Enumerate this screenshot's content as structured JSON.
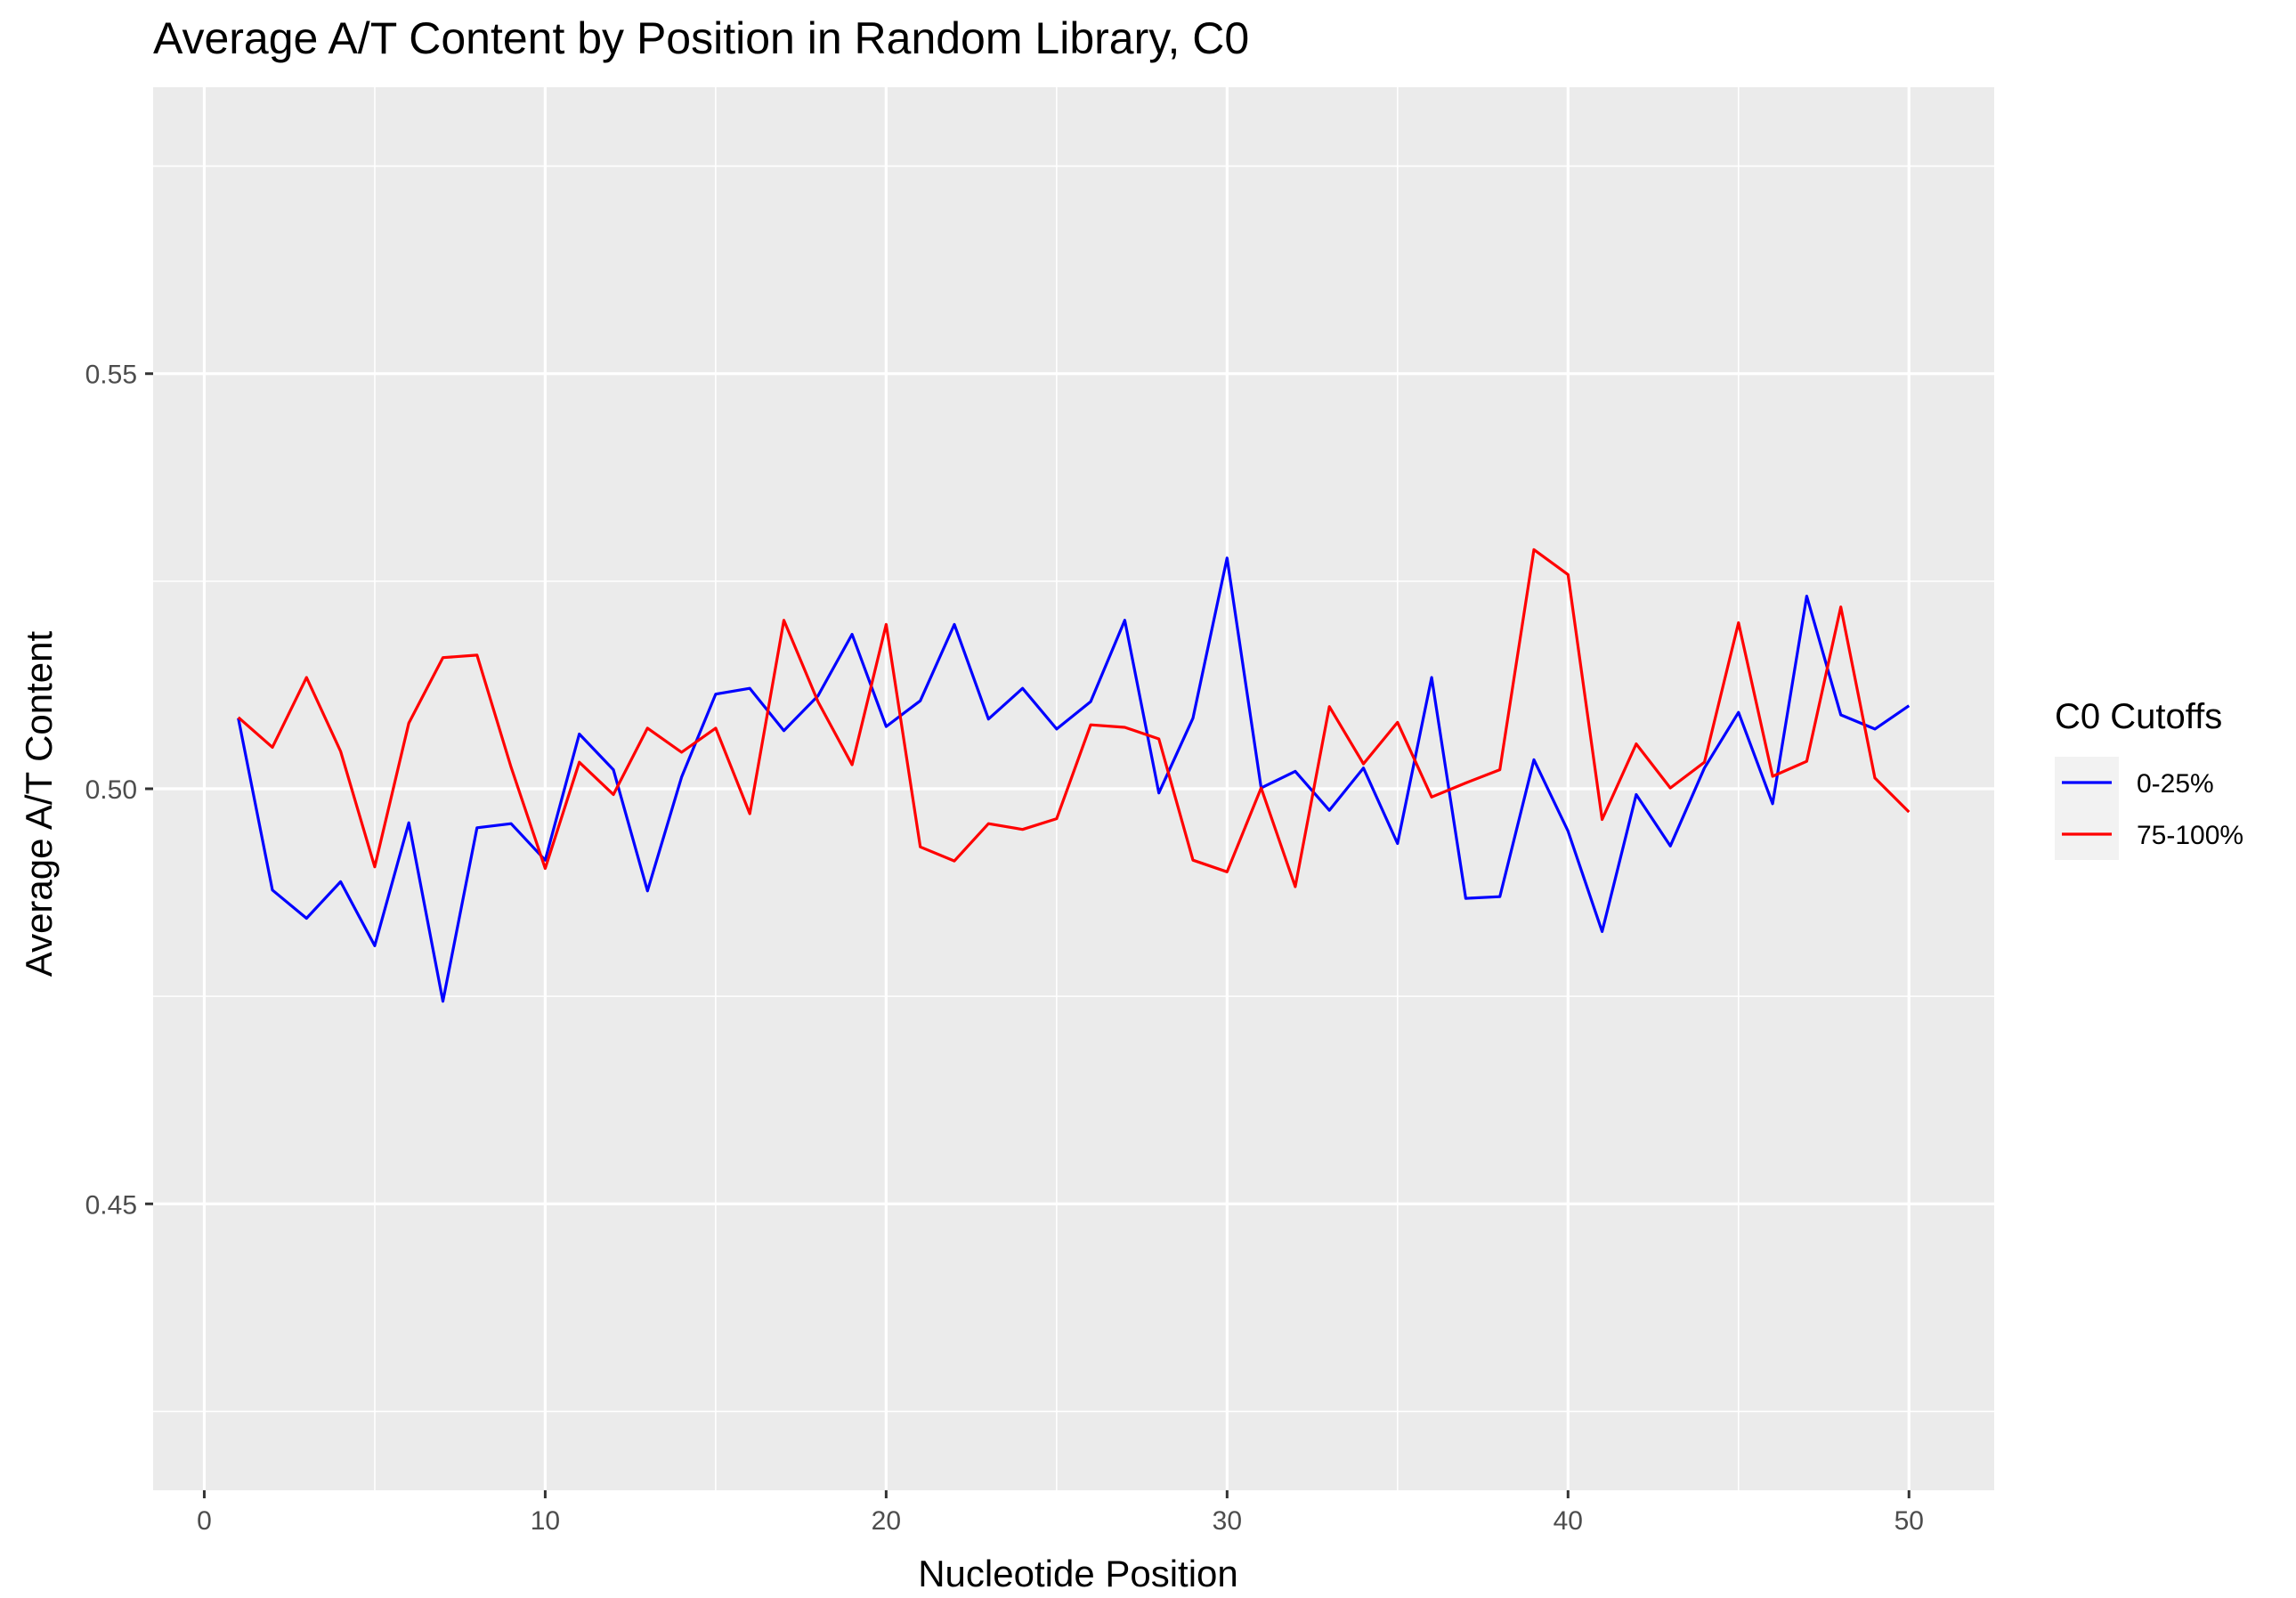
{
  "chart_data": {
    "type": "line",
    "title": "Average A/T Content by Position in Random Library, C0",
    "xlabel": "Nucleotide Position",
    "ylabel": "Average A/T Content",
    "xlim": [
      -1.5,
      52.5
    ],
    "ylim": [
      0.4155,
      0.5845
    ],
    "x_ticks": [
      0,
      10,
      20,
      30,
      40,
      50
    ],
    "x_tick_labels": [
      "0",
      "10",
      "20",
      "30",
      "40",
      "50"
    ],
    "y_ticks": [
      0.45,
      0.5,
      0.55
    ],
    "y_tick_labels": [
      "0.45",
      "0.50",
      "0.55"
    ],
    "grid": true,
    "legend_position": "right",
    "legend_title": "C0 Cutoffs",
    "x": [
      1,
      2,
      3,
      4,
      5,
      6,
      7,
      8,
      9,
      10,
      11,
      12,
      13,
      14,
      15,
      16,
      17,
      18,
      19,
      20,
      21,
      22,
      23,
      24,
      25,
      26,
      27,
      28,
      29,
      30,
      31,
      32,
      33,
      34,
      35,
      36,
      37,
      38,
      39,
      40,
      41,
      42,
      43,
      44,
      45,
      46,
      47,
      48,
      49,
      50
    ],
    "series": [
      {
        "name": "0-25%",
        "color": "#0000ff",
        "values": [
          0.5085,
          0.4878,
          0.4844,
          0.4888,
          0.4811,
          0.4959,
          0.4744,
          0.4953,
          0.4958,
          0.4914,
          0.5066,
          0.5023,
          0.4877,
          0.5014,
          0.5114,
          0.5121,
          0.507,
          0.5112,
          0.5186,
          0.5075,
          0.5106,
          0.5198,
          0.5084,
          0.5121,
          0.5072,
          0.5105,
          0.5203,
          0.4995,
          0.5085,
          0.5278,
          0.5001,
          0.5021,
          0.4974,
          0.5025,
          0.4934,
          0.5134,
          0.4868,
          0.487,
          0.5035,
          0.4949,
          0.4828,
          0.4993,
          0.4931,
          0.5025,
          0.5092,
          0.4982,
          0.5232,
          0.5089,
          0.5072,
          0.51
        ]
      },
      {
        "name": "75-100%",
        "color": "#ff0000",
        "values": [
          0.5086,
          0.505,
          0.5134,
          0.5045,
          0.4906,
          0.5079,
          0.5158,
          0.5161,
          0.5026,
          0.4904,
          0.5032,
          0.4993,
          0.5073,
          0.5044,
          0.5073,
          0.497,
          0.5203,
          0.5105,
          0.5029,
          0.5198,
          0.493,
          0.4913,
          0.4958,
          0.4951,
          0.4964,
          0.5077,
          0.5074,
          0.506,
          0.4914,
          0.49,
          0.5001,
          0.4882,
          0.5099,
          0.503,
          0.508,
          0.499,
          0.5007,
          0.5023,
          0.5288,
          0.5258,
          0.4963,
          0.5054,
          0.5001,
          0.5032,
          0.52,
          0.5015,
          0.5033,
          0.5219,
          0.5013,
          0.4972
        ]
      }
    ]
  }
}
